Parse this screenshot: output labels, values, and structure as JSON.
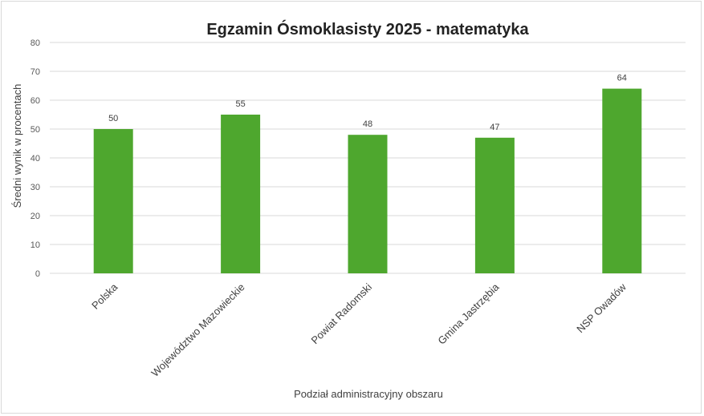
{
  "chart_data": {
    "type": "bar",
    "title": "Egzamin Ósmoklasisty 2025 - matematyka",
    "xlabel": "Podział administracyjny obszaru",
    "ylabel": "Średni wynik w procentach",
    "categories": [
      "Polska",
      "Województwo Mazowieckie",
      "Powiat Radomski",
      "Gmina Jastrzębia",
      "NSP Owadów"
    ],
    "values": [
      50,
      55,
      48,
      47,
      64
    ],
    "ylim": [
      0,
      80
    ],
    "yticks": [
      0,
      10,
      20,
      30,
      40,
      50,
      60,
      70,
      80
    ],
    "grid": true,
    "legend": "none",
    "colors": {
      "bar": "#4ea72e",
      "grid": "#d9d9d9"
    }
  }
}
